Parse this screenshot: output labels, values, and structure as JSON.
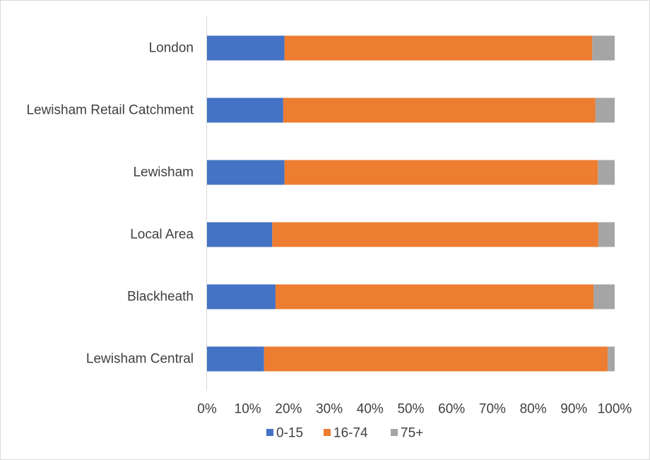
{
  "chart_data": {
    "type": "bar",
    "orientation": "horizontal",
    "stacked": "percent",
    "title": "",
    "xlabel": "",
    "ylabel": "",
    "xlim": [
      0,
      100
    ],
    "x_ticks": [
      "0%",
      "10%",
      "20%",
      "30%",
      "40%",
      "50%",
      "60%",
      "70%",
      "80%",
      "90%",
      "100%"
    ],
    "categories": [
      "London",
      "Lewisham Retail Catchment",
      "Lewisham",
      "Local Area",
      "Blackheath",
      "Lewisham Central"
    ],
    "series": [
      {
        "name": "0-15",
        "color": "#4472C4",
        "values": [
          19,
          18.7,
          19,
          16,
          16.8,
          14
        ]
      },
      {
        "name": "16-74",
        "color": "#ED7D31",
        "values": [
          75.5,
          76.6,
          76.9,
          80,
          78,
          84.3
        ]
      },
      {
        "name": "75+",
        "color": "#A5A5A5",
        "values": [
          5.5,
          4.7,
          4.1,
          4,
          5.2,
          1.7
        ]
      }
    ],
    "legend_position": "bottom",
    "grid": false
  }
}
